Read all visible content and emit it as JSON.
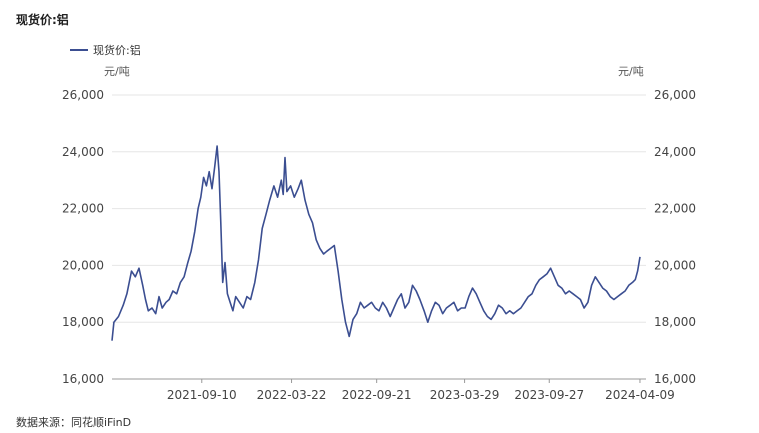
{
  "header": {
    "title": "现货价:铝"
  },
  "legend": {
    "label": "现货价:铝"
  },
  "axis": {
    "left_unit": "元/吨",
    "right_unit": "元/吨"
  },
  "footer": {
    "source": "数据来源：同花顺iFinD"
  },
  "chart_data": {
    "type": "line",
    "title": "现货价:铝",
    "ylim": [
      16000,
      26000
    ],
    "yticks": [
      16000,
      18000,
      20000,
      22000,
      24000,
      26000
    ],
    "ytick_labels": [
      "16,000",
      "18,000",
      "20,000",
      "22,000",
      "24,000",
      "26,000"
    ],
    "xtick_labels": [
      "2021-09-10",
      "2022-03-22",
      "2022-09-21",
      "2023-03-29",
      "2023-09-27",
      "2024-04-09"
    ],
    "grid": true,
    "series": [
      {
        "name": "现货价:铝",
        "color": "#3b4e91",
        "points": [
          [
            "2021-03-01",
            17350
          ],
          [
            "2021-03-05",
            18000
          ],
          [
            "2021-03-15",
            18200
          ],
          [
            "2021-03-25",
            18600
          ],
          [
            "2021-04-02",
            19000
          ],
          [
            "2021-04-12",
            19800
          ],
          [
            "2021-04-20",
            19600
          ],
          [
            "2021-04-28",
            19900
          ],
          [
            "2021-05-06",
            19300
          ],
          [
            "2021-05-12",
            18800
          ],
          [
            "2021-05-18",
            18400
          ],
          [
            "2021-05-26",
            18500
          ],
          [
            "2021-06-03",
            18300
          ],
          [
            "2021-06-10",
            18900
          ],
          [
            "2021-06-17",
            18500
          ],
          [
            "2021-06-25",
            18700
          ],
          [
            "2021-07-02",
            18800
          ],
          [
            "2021-07-10",
            19100
          ],
          [
            "2021-07-18",
            19000
          ],
          [
            "2021-07-26",
            19400
          ],
          [
            "2021-08-03",
            19600
          ],
          [
            "2021-08-11",
            20100
          ],
          [
            "2021-08-18",
            20500
          ],
          [
            "2021-08-26",
            21200
          ],
          [
            "2021-09-02",
            22000
          ],
          [
            "2021-09-08",
            22400
          ],
          [
            "2021-09-14",
            23100
          ],
          [
            "2021-09-20",
            22800
          ],
          [
            "2021-09-26",
            23300
          ],
          [
            "2021-10-02",
            22700
          ],
          [
            "2021-10-08",
            23500
          ],
          [
            "2021-10-13",
            24200
          ],
          [
            "2021-10-17",
            23300
          ],
          [
            "2021-10-21",
            21500
          ],
          [
            "2021-10-25",
            19400
          ],
          [
            "2021-10-30",
            20100
          ],
          [
            "2021-11-04",
            19000
          ],
          [
            "2021-11-10",
            18700
          ],
          [
            "2021-11-16",
            18400
          ],
          [
            "2021-11-22",
            18900
          ],
          [
            "2021-11-30",
            18700
          ],
          [
            "2021-12-08",
            18500
          ],
          [
            "2021-12-16",
            18900
          ],
          [
            "2021-12-24",
            18800
          ],
          [
            "2022-01-02",
            19400
          ],
          [
            "2022-01-10",
            20200
          ],
          [
            "2022-01-18",
            21300
          ],
          [
            "2022-01-26",
            21800
          ],
          [
            "2022-02-03",
            22300
          ],
          [
            "2022-02-12",
            22800
          ],
          [
            "2022-02-20",
            22400
          ],
          [
            "2022-02-28",
            23000
          ],
          [
            "2022-03-04",
            22500
          ],
          [
            "2022-03-08",
            23800
          ],
          [
            "2022-03-12",
            22600
          ],
          [
            "2022-03-20",
            22800
          ],
          [
            "2022-03-28",
            22400
          ],
          [
            "2022-04-05",
            22700
          ],
          [
            "2022-04-12",
            23000
          ],
          [
            "2022-04-20",
            22300
          ],
          [
            "2022-04-28",
            21800
          ],
          [
            "2022-05-06",
            21500
          ],
          [
            "2022-05-14",
            20900
          ],
          [
            "2022-05-22",
            20600
          ],
          [
            "2022-05-30",
            20400
          ],
          [
            "2022-06-06",
            20500
          ],
          [
            "2022-06-14",
            20600
          ],
          [
            "2022-06-22",
            20700
          ],
          [
            "2022-06-30",
            19800
          ],
          [
            "2022-07-08",
            18800
          ],
          [
            "2022-07-16",
            18000
          ],
          [
            "2022-07-24",
            17500
          ],
          [
            "2022-08-01",
            18100
          ],
          [
            "2022-08-09",
            18300
          ],
          [
            "2022-08-17",
            18700
          ],
          [
            "2022-08-25",
            18500
          ],
          [
            "2022-09-02",
            18600
          ],
          [
            "2022-09-10",
            18700
          ],
          [
            "2022-09-18",
            18500
          ],
          [
            "2022-09-26",
            18400
          ],
          [
            "2022-10-04",
            18700
          ],
          [
            "2022-10-12",
            18500
          ],
          [
            "2022-10-20",
            18200
          ],
          [
            "2022-10-28",
            18500
          ],
          [
            "2022-11-05",
            18800
          ],
          [
            "2022-11-13",
            19000
          ],
          [
            "2022-11-21",
            18500
          ],
          [
            "2022-11-29",
            18700
          ],
          [
            "2022-12-07",
            19300
          ],
          [
            "2022-12-15",
            19100
          ],
          [
            "2022-12-23",
            18800
          ],
          [
            "2023-01-01",
            18400
          ],
          [
            "2023-01-09",
            18000
          ],
          [
            "2023-01-17",
            18400
          ],
          [
            "2023-01-25",
            18700
          ],
          [
            "2023-02-02",
            18600
          ],
          [
            "2023-02-10",
            18300
          ],
          [
            "2023-02-18",
            18500
          ],
          [
            "2023-02-26",
            18600
          ],
          [
            "2023-03-06",
            18700
          ],
          [
            "2023-03-14",
            18400
          ],
          [
            "2023-03-22",
            18500
          ],
          [
            "2023-03-30",
            18500
          ],
          [
            "2023-04-07",
            18900
          ],
          [
            "2023-04-15",
            19200
          ],
          [
            "2023-04-23",
            19000
          ],
          [
            "2023-05-01",
            18700
          ],
          [
            "2023-05-09",
            18400
          ],
          [
            "2023-05-17",
            18200
          ],
          [
            "2023-05-25",
            18100
          ],
          [
            "2023-06-02",
            18300
          ],
          [
            "2023-06-10",
            18600
          ],
          [
            "2023-06-18",
            18500
          ],
          [
            "2023-06-26",
            18300
          ],
          [
            "2023-07-04",
            18400
          ],
          [
            "2023-07-12",
            18300
          ],
          [
            "2023-07-20",
            18400
          ],
          [
            "2023-07-28",
            18500
          ],
          [
            "2023-08-05",
            18700
          ],
          [
            "2023-08-13",
            18900
          ],
          [
            "2023-08-21",
            19000
          ],
          [
            "2023-08-29",
            19300
          ],
          [
            "2023-09-06",
            19500
          ],
          [
            "2023-09-14",
            19600
          ],
          [
            "2023-09-22",
            19700
          ],
          [
            "2023-09-30",
            19900
          ],
          [
            "2023-10-08",
            19600
          ],
          [
            "2023-10-16",
            19300
          ],
          [
            "2023-10-24",
            19200
          ],
          [
            "2023-11-01",
            19000
          ],
          [
            "2023-11-09",
            19100
          ],
          [
            "2023-11-17",
            19000
          ],
          [
            "2023-11-25",
            18900
          ],
          [
            "2023-12-03",
            18800
          ],
          [
            "2023-12-11",
            18500
          ],
          [
            "2023-12-19",
            18700
          ],
          [
            "2023-12-27",
            19300
          ],
          [
            "2024-01-04",
            19600
          ],
          [
            "2024-01-12",
            19400
          ],
          [
            "2024-01-20",
            19200
          ],
          [
            "2024-01-28",
            19100
          ],
          [
            "2024-02-05",
            18900
          ],
          [
            "2024-02-13",
            18800
          ],
          [
            "2024-02-21",
            18900
          ],
          [
            "2024-02-29",
            19000
          ],
          [
            "2024-03-08",
            19100
          ],
          [
            "2024-03-16",
            19300
          ],
          [
            "2024-03-24",
            19400
          ],
          [
            "2024-03-30",
            19500
          ],
          [
            "2024-04-04",
            19800
          ],
          [
            "2024-04-09",
            20300
          ]
        ]
      }
    ]
  }
}
